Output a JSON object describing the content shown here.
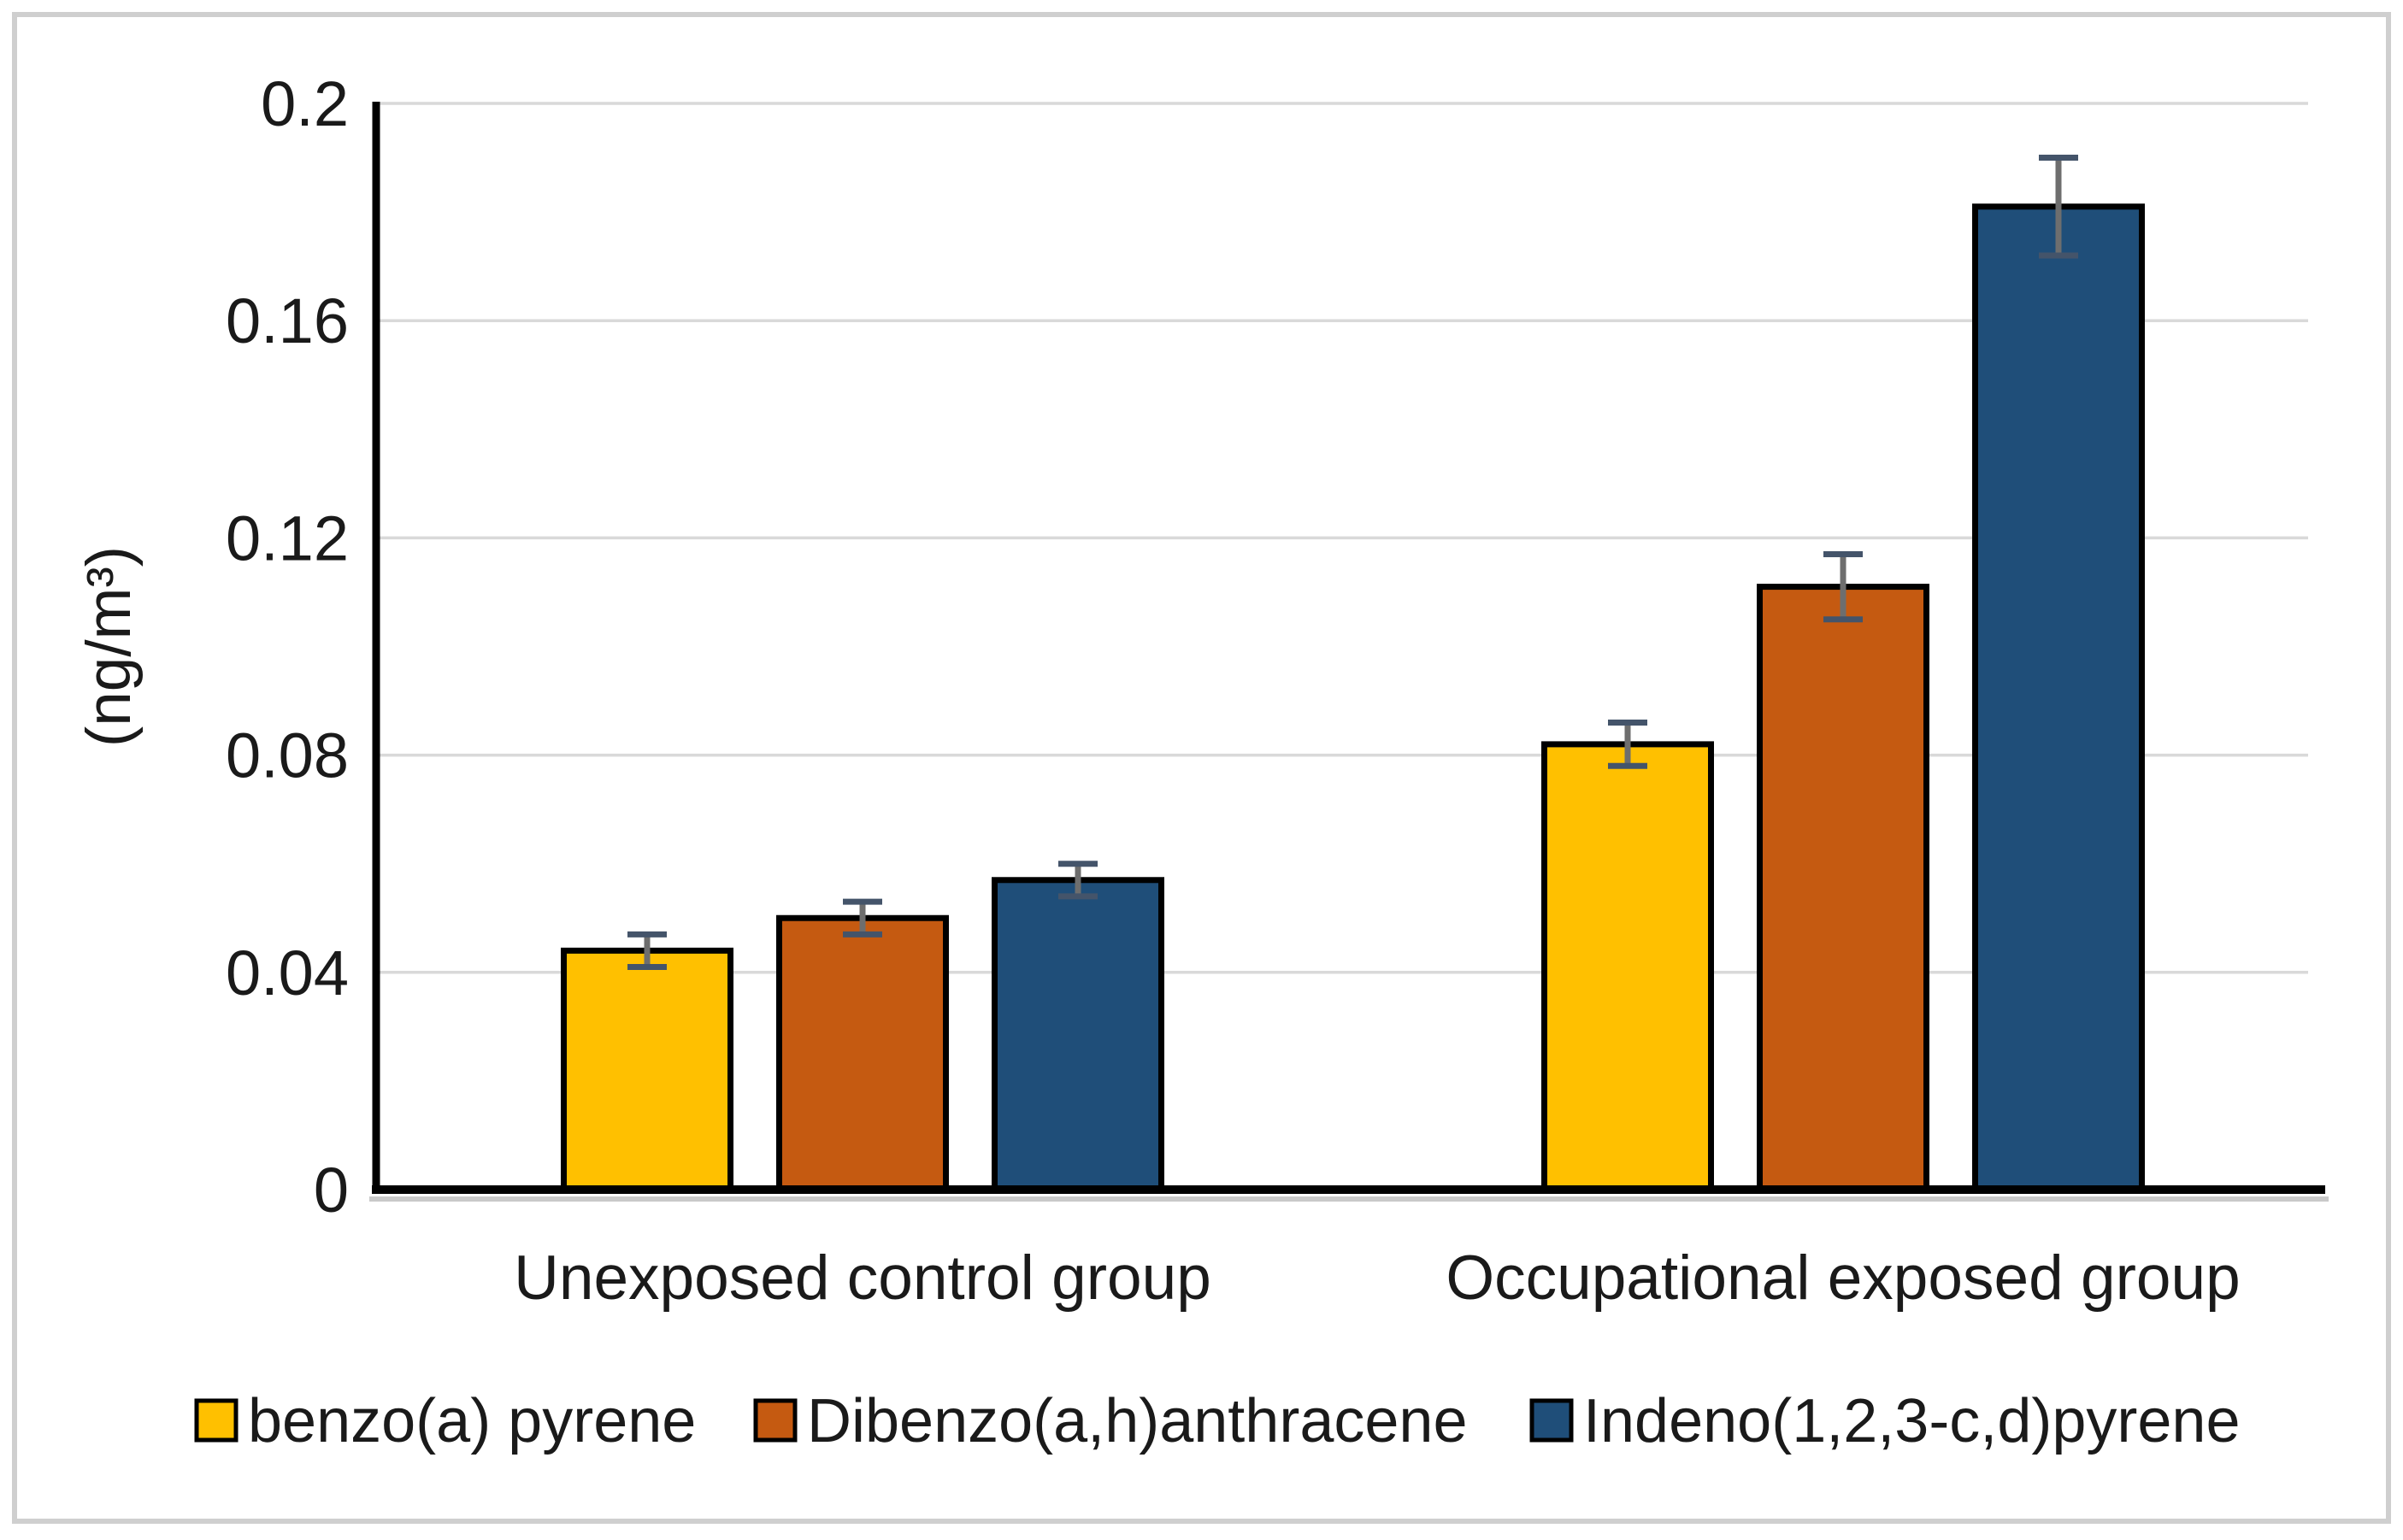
{
  "chart_data": {
    "type": "bar",
    "title": "",
    "xlabel": "",
    "ylabel": "(ng/m³)",
    "ylim": [
      0,
      0.2
    ],
    "yticks": [
      0,
      0.04,
      0.08,
      0.12,
      0.16,
      0.2
    ],
    "ytick_labels": [
      "0",
      "0.04",
      "0.08",
      "0.12",
      "0.16",
      "0.2"
    ],
    "grid": true,
    "legend_position": "bottom",
    "categories": [
      "Unexposed control group",
      "Occupational exposed group"
    ],
    "series": [
      {
        "name": "benzo(a) pyrene",
        "color": "#FFC000",
        "values": [
          0.044,
          0.082
        ],
        "errors": [
          0.003,
          0.004
        ]
      },
      {
        "name": "Dibenzo(a,h)anthracene",
        "color": "#C55A11",
        "values": [
          0.05,
          0.111
        ],
        "errors": [
          0.003,
          0.006
        ]
      },
      {
        "name": "Indeno(1,2,3-c,d)pyrene",
        "color": "#1F4E79",
        "values": [
          0.057,
          0.181
        ],
        "errors": [
          0.003,
          0.009
        ]
      }
    ],
    "colors": {
      "bar_border": "#000000",
      "error_bar_line": "#6e6e6e",
      "error_bar_cap": "#44546A",
      "gridline": "#D9D9D9",
      "axis": "#000000",
      "axis_shadow": "#c9c9c9",
      "text": "#1a1a1a",
      "frame_border": "#CFCFCF",
      "background": "#FFFFFF"
    }
  }
}
